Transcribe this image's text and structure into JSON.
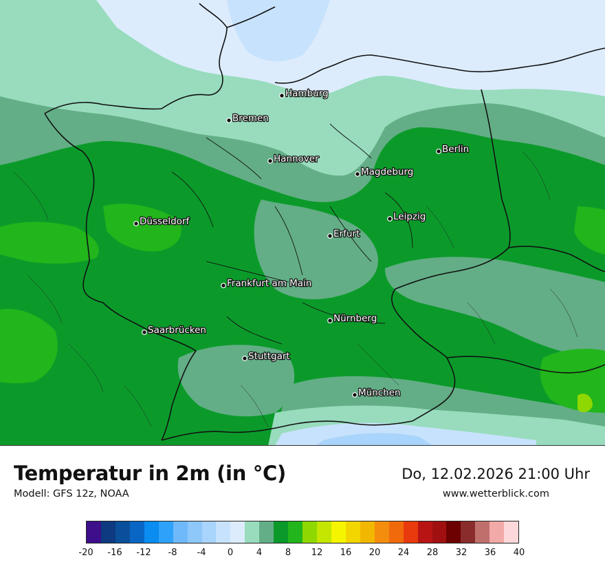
{
  "title": "Temperatur in 2m (in °C)",
  "model": "Modell: GFS 12z, NOAA",
  "datetime": "Do, 12.02.2026 21:00 Uhr",
  "source": "www.wetterblick.com",
  "cities": [
    {
      "id": "hamburg",
      "name": "Hamburg"
    },
    {
      "id": "bremen",
      "name": "Bremen"
    },
    {
      "id": "hannover",
      "name": "Hannover"
    },
    {
      "id": "berlin",
      "name": "Berlin"
    },
    {
      "id": "magdeburg",
      "name": "Magdeburg"
    },
    {
      "id": "duesseldorf",
      "name": "Düsseldorf"
    },
    {
      "id": "leipzig",
      "name": "Leipzig"
    },
    {
      "id": "erfurt",
      "name": "Erfurt"
    },
    {
      "id": "frankfurt",
      "name": "Frankfurt am Main"
    },
    {
      "id": "nuernberg",
      "name": "Nürnberg"
    },
    {
      "id": "saarbruecken",
      "name": "Saarbrücken"
    },
    {
      "id": "stuttgart",
      "name": "Stuttgart"
    },
    {
      "id": "muenchen",
      "name": "München"
    }
  ],
  "legend": {
    "colors": [
      "#3d0f8a",
      "#0d3a80",
      "#0a4f9a",
      "#0a66c4",
      "#0a8cf0",
      "#2ea2fb",
      "#6fb9fb",
      "#8ec7fa",
      "#a9d4fb",
      "#c7e2fc",
      "#dcecfd",
      "#98dcbd",
      "#63ae86",
      "#0b9a2a",
      "#22b51c",
      "#8fd700",
      "#c4e600",
      "#f5f500",
      "#f3d500",
      "#f2b700",
      "#f48d0d",
      "#f06a0c",
      "#e83a0c",
      "#b81414",
      "#a01010",
      "#6d0000",
      "#8b2c2c",
      "#c0706c",
      "#f2aaa8",
      "#fdd8da"
    ],
    "ticks": [
      "-20",
      "-16",
      "-12",
      "-8",
      "-4",
      "0",
      "4",
      "8",
      "12",
      "16",
      "20",
      "24",
      "28",
      "32",
      "36",
      "40"
    ]
  }
}
